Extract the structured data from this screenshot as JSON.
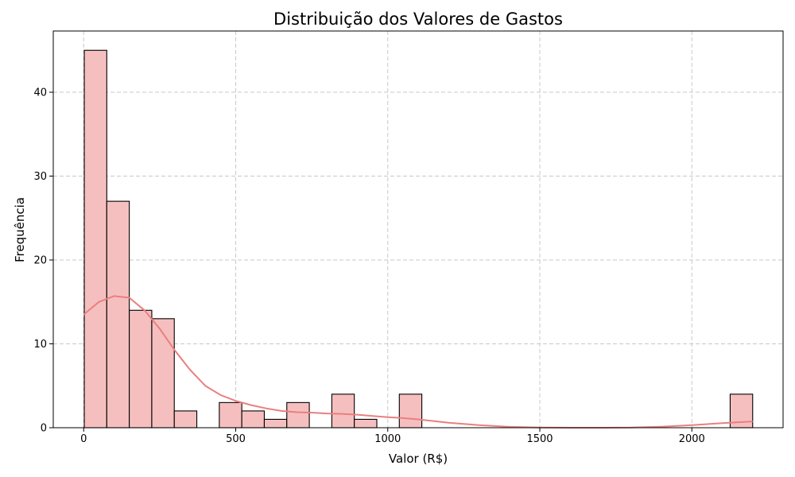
{
  "chart_data": {
    "type": "bar",
    "title": "Distribuição dos Valores de Gastos",
    "xlabel": "Valor (R$)",
    "ylabel": "Frequência",
    "xlim": [
      -100,
      2300
    ],
    "ylim": [
      0,
      47.3
    ],
    "x_ticks": [
      0,
      500,
      1000,
      1500,
      2000
    ],
    "y_ticks": [
      0,
      10,
      20,
      30,
      40
    ],
    "grid": true,
    "bin_edges": [
      2,
      76,
      150,
      224,
      298,
      372,
      446,
      520,
      594,
      668,
      742,
      816,
      890,
      964,
      1038,
      1112,
      1186,
      1260,
      1334,
      1408,
      1482,
      1556,
      1630,
      1704,
      1778,
      1852,
      1926,
      2000,
      2074,
      2126,
      2200
    ],
    "counts": [
      45,
      27,
      14,
      13,
      2,
      0,
      3,
      2,
      1,
      3,
      0,
      4,
      1,
      0,
      4,
      0,
      0,
      0,
      0,
      0,
      0,
      0,
      0,
      0,
      0,
      0,
      0,
      0,
      0,
      4
    ],
    "kde": {
      "x": [
        0,
        50,
        100,
        150,
        200,
        250,
        300,
        350,
        400,
        450,
        500,
        550,
        600,
        650,
        700,
        750,
        800,
        850,
        900,
        950,
        1000,
        1050,
        1100,
        1200,
        1300,
        1400,
        1500,
        1600,
        1700,
        1800,
        1900,
        2000,
        2100,
        2200
      ],
      "y": [
        13.5,
        15.0,
        15.7,
        15.5,
        14.0,
        11.8,
        9.2,
        6.9,
        5.0,
        3.9,
        3.2,
        2.7,
        2.3,
        2.0,
        1.85,
        1.8,
        1.7,
        1.65,
        1.55,
        1.4,
        1.25,
        1.15,
        1.0,
        0.6,
        0.3,
        0.1,
        0.02,
        0.0,
        0.0,
        0.02,
        0.12,
        0.3,
        0.55,
        0.75
      ]
    },
    "colors": {
      "bar_fill": "#f6bfbf",
      "bar_edge": "#000000",
      "kde_line": "#ea7f7f",
      "grid": "#c8c8c8"
    }
  }
}
